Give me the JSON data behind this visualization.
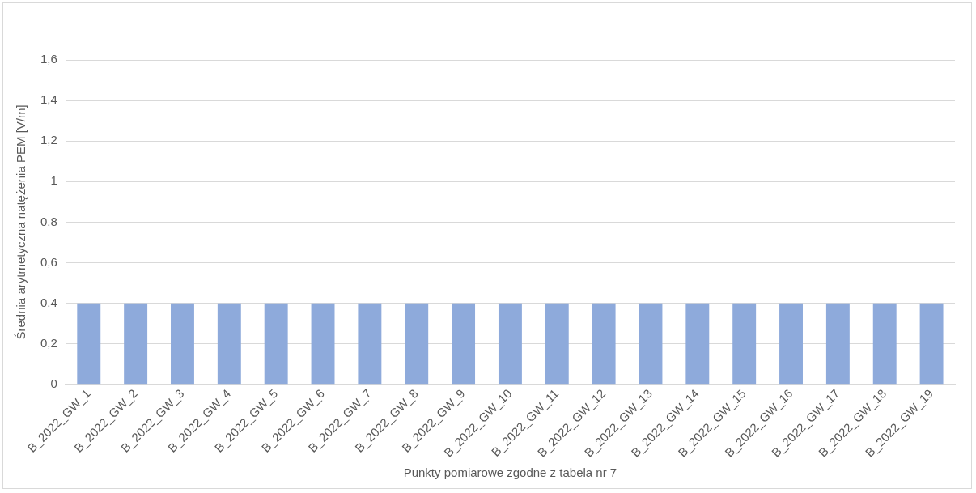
{
  "chart_data": {
    "type": "bar",
    "xlabel": "Punkty pomiarowe zgodne z tabela nr 7",
    "ylabel": "Średnia arytmetyczna natężenia PEM [V/m]",
    "categories": [
      "B_2022_GW_1",
      "B_2022_GW_2",
      "B_2022_GW_3",
      "B_2022_GW_4",
      "B_2022_GW_5",
      "B_2022_GW_6",
      "B_2022_GW_7",
      "B_2022_GW_8",
      "B_2022_GW_9",
      "B_2022_GW_10",
      "B_2022_GW_11",
      "B_2022_GW_12",
      "B_2022_GW_13",
      "B_2022_GW_14",
      "B_2022_GW_15",
      "B_2022_GW_16",
      "B_2022_GW_17",
      "B_2022_GW_18",
      "B_2022_GW_19"
    ],
    "values": [
      0.4,
      0.4,
      0.4,
      0.4,
      0.4,
      0.4,
      0.4,
      0.4,
      0.4,
      0.4,
      0.4,
      0.4,
      0.4,
      0.4,
      0.4,
      0.4,
      0.4,
      0.4,
      0.4
    ],
    "color": "#8eaadb",
    "ylim": [
      0,
      1.6
    ],
    "yticks": [
      0,
      {
        "value": 0.2,
        "label": "0,2"
      },
      {
        "value": 0.4,
        "label": "0,4"
      },
      {
        "value": 0.6,
        "label": "0,6"
      },
      {
        "value": 0.8,
        "label": "0,8"
      },
      1,
      {
        "value": 1.2,
        "label": "1,2"
      },
      {
        "value": 1.4,
        "label": "1,4"
      },
      {
        "value": 1.6,
        "label": "1,6"
      }
    ],
    "grid": "y",
    "legend": false
  }
}
